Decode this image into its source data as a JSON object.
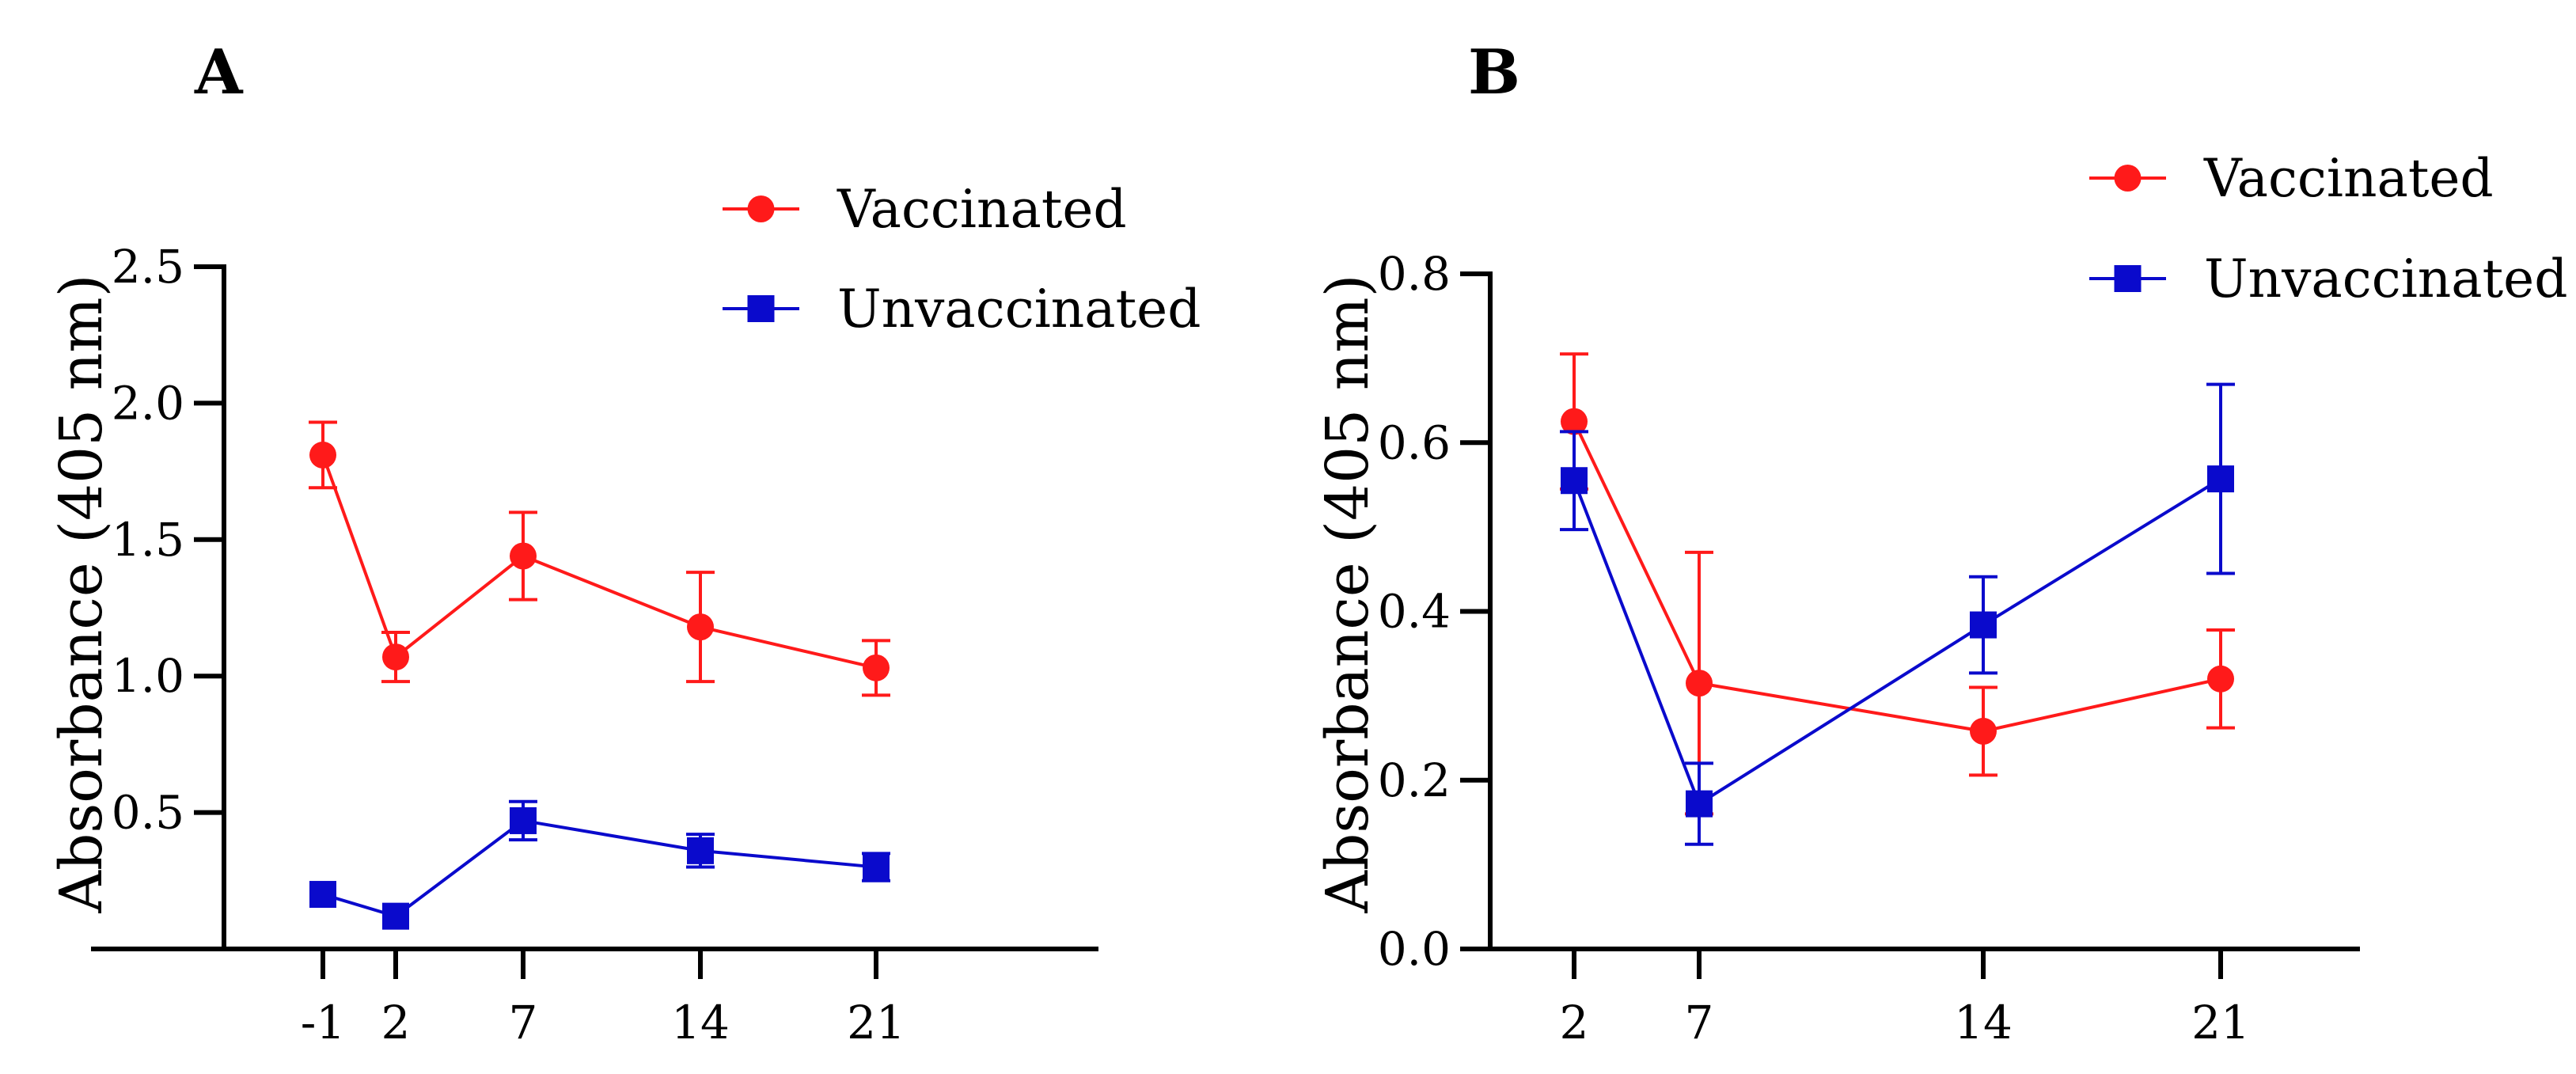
{
  "chart_data": [
    {
      "panel": "A",
      "type": "line",
      "title": "",
      "xlabel": "",
      "ylabel": "Absorbance (405 nm)",
      "x": [
        -1,
        2,
        7,
        14,
        21
      ],
      "xticks": [
        "-1",
        "2",
        "7",
        "14",
        "21"
      ],
      "ylim": [
        0,
        2.5
      ],
      "yticks": [
        "0.5",
        "1.0",
        "1.5",
        "2.0",
        "2.5"
      ],
      "legend_position": "top-right",
      "series": [
        {
          "name": "Vaccinated",
          "color": "#ff1a1a",
          "marker": "circle",
          "values": [
            1.81,
            1.07,
            1.44,
            1.18,
            1.03
          ],
          "errors": [
            0.12,
            0.09,
            0.16,
            0.2,
            0.1
          ]
        },
        {
          "name": "Unvaccinated",
          "color": "#0a0acc",
          "marker": "square",
          "values": [
            0.2,
            0.12,
            0.47,
            0.36,
            0.3
          ],
          "errors": [
            0.0,
            0.0,
            0.07,
            0.06,
            0.05
          ]
        }
      ]
    },
    {
      "panel": "B",
      "type": "line",
      "title": "",
      "xlabel": "",
      "ylabel": "Absorbance (405 nm)",
      "x": [
        2,
        7,
        14,
        21
      ],
      "xticks": [
        "2",
        "7",
        "14",
        "21"
      ],
      "ylim": [
        0,
        0.8
      ],
      "yticks": [
        "0.0",
        "0.2",
        "0.4",
        "0.6",
        "0.8"
      ],
      "legend_position": "top-right",
      "series": [
        {
          "name": "Vaccinated",
          "color": "#ff1a1a",
          "marker": "circle",
          "values": [
            0.625,
            0.315,
            0.258,
            0.32
          ],
          "errors": [
            0.08,
            0.155,
            0.052,
            0.058
          ]
        },
        {
          "name": "Unvaccinated",
          "color": "#0a0acc",
          "marker": "square",
          "values": [
            0.555,
            0.172,
            0.384,
            0.557
          ],
          "errors": [
            0.058,
            0.048,
            0.057,
            0.112
          ]
        }
      ]
    }
  ]
}
